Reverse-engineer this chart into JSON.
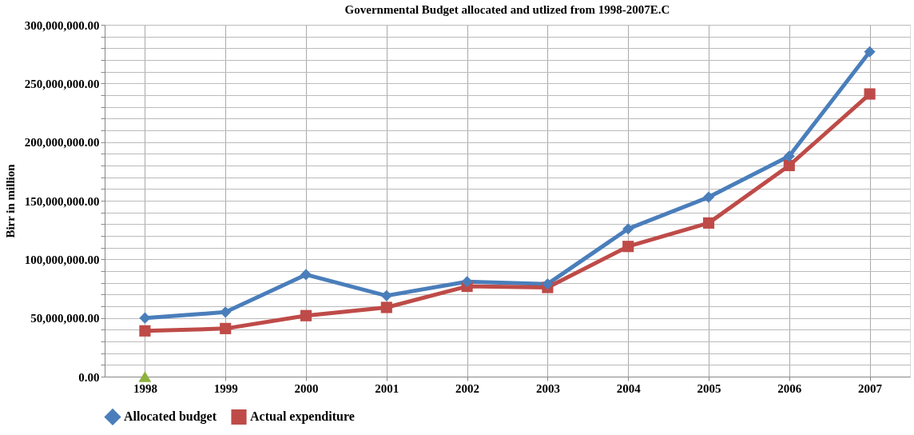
{
  "chart_data": {
    "type": "line",
    "title": "Governmental Budget allocated and utlized  from 1998-2007E.C",
    "ylabel": "Birr in million",
    "categories": [
      "1998",
      "1999",
      "2000",
      "2001",
      "2002",
      "2003",
      "2004",
      "2005",
      "2006",
      "2007"
    ],
    "series": [
      {
        "name": "Allocated budget",
        "color": "#4a7ebb",
        "marker": "diamond",
        "values": [
          50000000,
          55000000,
          87000000,
          69000000,
          81000000,
          79000000,
          126000000,
          153000000,
          188000000,
          277000000
        ]
      },
      {
        "name": "Actual expenditure",
        "color": "#be4b48",
        "marker": "square",
        "values": [
          39000000,
          41000000,
          52000000,
          59000000,
          77000000,
          76000000,
          111000000,
          131000000,
          180000000,
          241000000
        ]
      },
      {
        "type": "scatter",
        "color": "#8cb23c",
        "marker": "triangle",
        "values": [
          0,
          null,
          null,
          null,
          null,
          null,
          null,
          null,
          null,
          null
        ]
      }
    ],
    "ylim": [
      0,
      300000000
    ],
    "yticks": [
      {
        "value": 0,
        "label": "0.00"
      },
      {
        "value": 10000000,
        "label": null
      },
      {
        "value": 20000000,
        "label": null
      },
      {
        "value": 30000000,
        "label": null
      },
      {
        "value": 40000000,
        "label": null
      },
      {
        "value": 50000000,
        "label": "50,000,000.00"
      },
      {
        "value": 60000000,
        "label": null
      },
      {
        "value": 70000000,
        "label": null
      },
      {
        "value": 80000000,
        "label": null
      },
      {
        "value": 90000000,
        "label": null
      },
      {
        "value": 100000000,
        "label": "100,000,000.00"
      },
      {
        "value": 110000000,
        "label": null
      },
      {
        "value": 120000000,
        "label": null
      },
      {
        "value": 130000000,
        "label": null
      },
      {
        "value": 140000000,
        "label": null
      },
      {
        "value": 150000000,
        "label": "150,000,000.00"
      },
      {
        "value": 160000000,
        "label": null
      },
      {
        "value": 170000000,
        "label": null
      },
      {
        "value": 180000000,
        "label": null
      },
      {
        "value": 190000000,
        "label": null
      },
      {
        "value": 200000000,
        "label": "200,000,000.00"
      },
      {
        "value": 210000000,
        "label": null
      },
      {
        "value": 220000000,
        "label": null
      },
      {
        "value": 230000000,
        "label": null
      },
      {
        "value": 240000000,
        "label": null
      },
      {
        "value": 250000000,
        "label": "250,000,000.00"
      },
      {
        "value": 260000000,
        "label": null
      },
      {
        "value": 270000000,
        "label": null
      },
      {
        "value": 280000000,
        "label": null
      },
      {
        "value": 290000000,
        "label": null
      },
      {
        "value": 300000000,
        "label": "300,000,000.00"
      }
    ],
    "grid": true,
    "legend": "bottom",
    "line_style": "solid"
  }
}
